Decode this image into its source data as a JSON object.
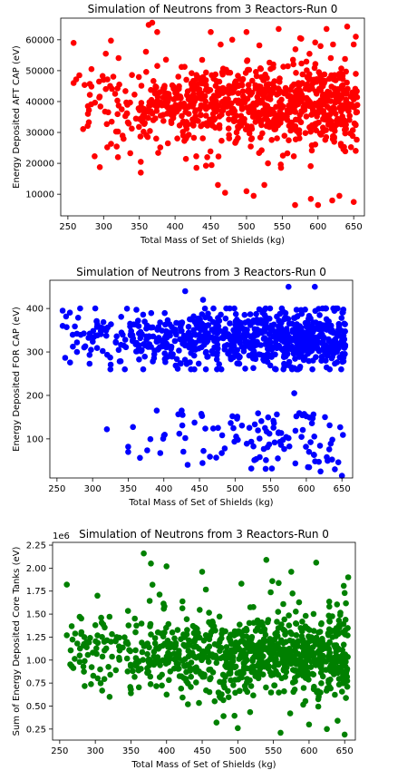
{
  "chart_data": [
    {
      "type": "scatter",
      "title": "Simulation of Neutrons from 3 Reactors-Run 0",
      "xlabel": "Total Mass of Set of Shields (kg)",
      "ylabel": "Energy Deposited AFT CAP (eV)",
      "color": "#ff0000",
      "xlim": [
        240,
        665
      ],
      "ylim": [
        3000,
        67000
      ],
      "xticks": [
        250,
        300,
        350,
        400,
        450,
        500,
        550,
        600,
        650
      ],
      "yticks": [
        10000,
        20000,
        30000,
        40000,
        50000,
        60000
      ],
      "ytick_labels": [
        "10000",
        "20000",
        "30000",
        "40000",
        "50000",
        "60000"
      ],
      "offset_text": "",
      "n_points": 900,
      "x_range": [
        258,
        655
      ],
      "y_range": [
        5500,
        65500
      ],
      "bulk_center": 39000,
      "bulk_spread": 7000,
      "outliers": [
        [
          258,
          59000
        ],
        [
          258,
          46000
        ],
        [
          278,
          38500
        ],
        [
          278,
          36000
        ],
        [
          283,
          50500
        ],
        [
          300,
          47000
        ],
        [
          303,
          55500
        ],
        [
          320,
          22000
        ],
        [
          322,
          45500
        ],
        [
          352,
          20500
        ],
        [
          352,
          17000
        ],
        [
          368,
          65500
        ],
        [
          375,
          62500
        ],
        [
          390,
          26500
        ],
        [
          445,
          22000
        ],
        [
          450,
          62500
        ],
        [
          460,
          13000
        ],
        [
          470,
          10500
        ],
        [
          480,
          60000
        ],
        [
          500,
          11000
        ],
        [
          500,
          62500
        ],
        [
          510,
          9500
        ],
        [
          525,
          13000
        ],
        [
          530,
          20000
        ],
        [
          545,
          63500
        ],
        [
          568,
          6500
        ],
        [
          575,
          60500
        ],
        [
          590,
          8500
        ],
        [
          600,
          6500
        ],
        [
          612,
          63500
        ],
        [
          620,
          8000
        ],
        [
          630,
          9500
        ],
        [
          650,
          7500
        ],
        [
          650,
          58500
        ],
        [
          653,
          61000
        ]
      ]
    },
    {
      "type": "scatter",
      "title": "Simulation of Neutrons from 3 Reactors-Run 0",
      "xlabel": "Total Mass of Set of Shields (kg)",
      "ylabel": "Energy Deposited FOR CAP (eV)",
      "color": "#0000ff",
      "xlim": [
        240,
        665
      ],
      "ylim": [
        10,
        465
      ],
      "xticks": [
        250,
        300,
        350,
        400,
        450,
        500,
        550,
        600,
        650
      ],
      "yticks": [
        100,
        200,
        300,
        400
      ],
      "ytick_labels": [
        "100",
        "200",
        "300",
        "400"
      ],
      "offset_text": "",
      "n_points": 800,
      "x_range": [
        258,
        655
      ],
      "y_range": [
        260,
        400
      ],
      "bulk_center": 330,
      "bulk_spread": 35,
      "lower_cluster": {
        "n_points": 110,
        "x_range": [
          350,
          655
        ],
        "y_range": [
          30,
          160
        ]
      },
      "outliers": [
        [
          258,
          395
        ],
        [
          258,
          360
        ],
        [
          278,
          342
        ],
        [
          278,
          322
        ],
        [
          278,
          300
        ],
        [
          320,
          122
        ],
        [
          350,
          82
        ],
        [
          350,
          70
        ],
        [
          390,
          165
        ],
        [
          425,
          165
        ],
        [
          430,
          440
        ],
        [
          455,
          420
        ],
        [
          560,
          55
        ],
        [
          575,
          450
        ],
        [
          580,
          260
        ],
        [
          583,
          205
        ],
        [
          612,
          450
        ],
        [
          620,
          25
        ],
        [
          640,
          30
        ],
        [
          650,
          15
        ]
      ]
    },
    {
      "type": "scatter",
      "title": "Simulation of Neutrons from 3 Reactors-Run 0",
      "xlabel": "Total Mass of Set of Shields (kg)",
      "ylabel": "Sum of Energy Deposited Core Tanks (eV)",
      "color": "#008000",
      "xlim": [
        240,
        665
      ],
      "ylim": [
        130000,
        2280000
      ],
      "xticks": [
        250,
        300,
        350,
        400,
        450,
        500,
        550,
        600,
        650
      ],
      "yticks": [
        250000,
        500000,
        750000,
        1000000,
        1250000,
        1500000,
        1750000,
        2000000,
        2250000
      ],
      "ytick_labels": [
        "0.25",
        "0.50",
        "0.75",
        "1.00",
        "1.25",
        "1.50",
        "1.75",
        "2.00",
        "2.25"
      ],
      "offset_text": "1e6",
      "n_points": 900,
      "x_range": [
        258,
        655
      ],
      "y_range": [
        150000,
        2150000
      ],
      "bulk_center": 1050000,
      "bulk_spread": 230000,
      "outliers": [
        [
          260,
          1820000
        ],
        [
          260,
          1270000
        ],
        [
          278,
          1470000
        ],
        [
          278,
          1050000
        ],
        [
          278,
          980000
        ],
        [
          300,
          1380000
        ],
        [
          303,
          1700000
        ],
        [
          320,
          600000
        ],
        [
          322,
          1200000
        ],
        [
          350,
          680000
        ],
        [
          350,
          640000
        ],
        [
          368,
          2160000
        ],
        [
          378,
          2050000
        ],
        [
          400,
          2020000
        ],
        [
          430,
          520000
        ],
        [
          450,
          1960000
        ],
        [
          470,
          320000
        ],
        [
          480,
          390000
        ],
        [
          500,
          260000
        ],
        [
          505,
          1830000
        ],
        [
          540,
          2090000
        ],
        [
          560,
          210000
        ],
        [
          575,
          1960000
        ],
        [
          600,
          300000
        ],
        [
          610,
          2060000
        ],
        [
          625,
          250000
        ],
        [
          640,
          340000
        ],
        [
          650,
          190000
        ],
        [
          650,
          1730000
        ],
        [
          655,
          1900000
        ]
      ]
    }
  ]
}
